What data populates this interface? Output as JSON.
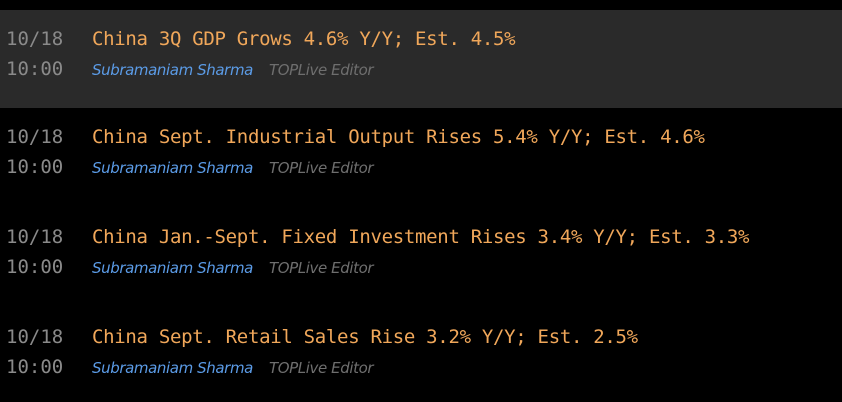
{
  "items": [
    {
      "date": "10/18",
      "time": "10:00",
      "headline": "China 3Q GDP Grows 4.6% Y/Y; Est. 4.5%",
      "author": "Subramaniam Sharma",
      "role": "TOPLive Editor"
    },
    {
      "date": "10/18",
      "time": "10:00",
      "headline": "China Sept. Industrial Output Rises 5.4% Y/Y; Est. 4.6%",
      "author": "Subramaniam Sharma",
      "role": "TOPLive Editor"
    },
    {
      "date": "10/18",
      "time": "10:00",
      "headline": "China Jan.-Sept. Fixed Investment Rises 3.4% Y/Y; Est. 3.3%",
      "author": "Subramaniam Sharma",
      "role": "TOPLive Editor"
    },
    {
      "date": "10/18",
      "time": "10:00",
      "headline": "China Sept. Retail Sales Rise 3.2% Y/Y; Est. 2.5%",
      "author": "Subramaniam Sharma",
      "role": "TOPLive Editor"
    }
  ]
}
